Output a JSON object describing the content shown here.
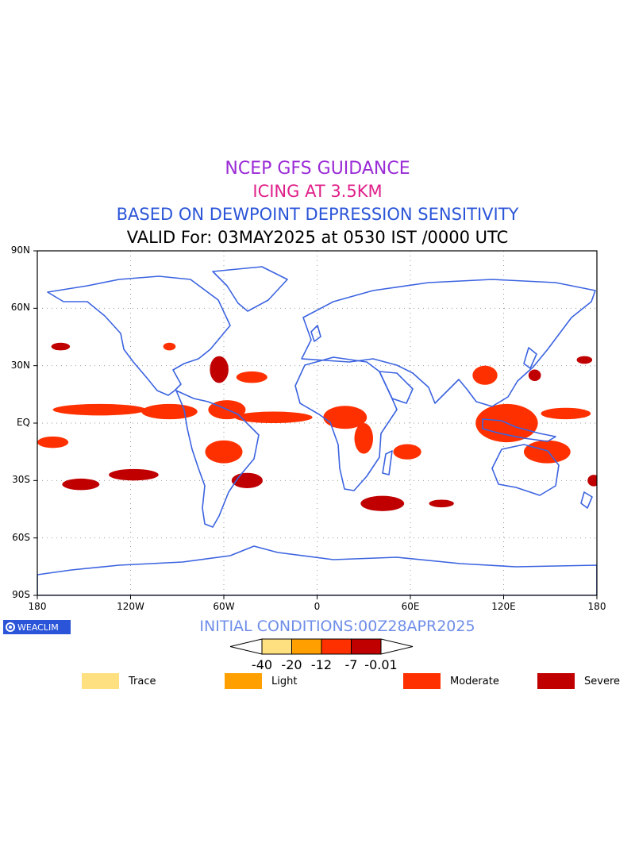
{
  "titles": {
    "line1": "NCEP GFS GUIDANCE",
    "line2": "ICING AT 3.5KM",
    "line3": "BASED ON DEWPOINT DEPRESSION SENSITIVITY",
    "line4": "VALID For: 03MAY2025 at 0530 IST /0000 UTC"
  },
  "colors": {
    "title1": "#9a2bd6",
    "title2": "#e0208a",
    "title3": "#2b55d8",
    "land_outline": "#3b63e0",
    "grid": "#9a9a9a",
    "trace": "#ffe080",
    "light": "#ffa000",
    "moderate": "#ff3000",
    "severe": "#c00000"
  },
  "axes": {
    "lat_labels": [
      "90N",
      "60N",
      "30N",
      "EQ",
      "30S",
      "60S",
      "90S"
    ],
    "lon_labels": [
      "180",
      "120W",
      "60W",
      "0",
      "60E",
      "120E",
      "180"
    ],
    "lat_ticks": [
      90,
      60,
      30,
      0,
      -30,
      -60,
      -90
    ],
    "lon_ticks": [
      -180,
      -120,
      -60,
      0,
      60,
      120,
      180
    ]
  },
  "branding": "WEACLIM",
  "initial_conditions": "INITIAL CONDITIONS:00Z28APR2025",
  "colorbar": {
    "tick_labels": [
      "-40",
      "-20",
      "-12",
      "-7",
      "-0.01"
    ],
    "segments": [
      "trace",
      "light",
      "moderate",
      "severe"
    ]
  },
  "legend": [
    {
      "label": "Trace",
      "color_key": "trace"
    },
    {
      "label": "Light",
      "color_key": "light"
    },
    {
      "label": "Moderate",
      "color_key": "moderate"
    },
    {
      "label": "Severe",
      "color_key": "severe"
    }
  ],
  "icing_regions": [
    {
      "level": "moderate",
      "lon": -140,
      "lat": 7,
      "rlon": 30,
      "rlat": 3
    },
    {
      "level": "moderate",
      "lon": -95,
      "lat": 6,
      "rlon": 18,
      "rlat": 4
    },
    {
      "level": "moderate",
      "lon": -58,
      "lat": 7,
      "rlon": 12,
      "rlat": 5
    },
    {
      "level": "moderate",
      "lon": -28,
      "lat": 3,
      "rlon": 25,
      "rlat": 3
    },
    {
      "level": "moderate",
      "lon": 18,
      "lat": 3,
      "rlon": 14,
      "rlat": 6
    },
    {
      "level": "moderate",
      "lon": 30,
      "lat": -8,
      "rlon": 6,
      "rlat": 8
    },
    {
      "level": "moderate",
      "lon": 58,
      "lat": -15,
      "rlon": 9,
      "rlat": 4
    },
    {
      "level": "moderate",
      "lon": 122,
      "lat": 0,
      "rlon": 20,
      "rlat": 10
    },
    {
      "level": "moderate",
      "lon": 160,
      "lat": 5,
      "rlon": 16,
      "rlat": 3
    },
    {
      "level": "moderate",
      "lon": 148,
      "lat": -15,
      "rlon": 15,
      "rlat": 6
    },
    {
      "level": "moderate",
      "lon": -60,
      "lat": -15,
      "rlon": 12,
      "rlat": 6
    },
    {
      "level": "moderate",
      "lon": -42,
      "lat": 24,
      "rlon": 10,
      "rlat": 3
    },
    {
      "level": "moderate",
      "lon": -95,
      "lat": 40,
      "rlon": 4,
      "rlat": 2
    },
    {
      "level": "moderate",
      "lon": 108,
      "lat": 25,
      "rlon": 8,
      "rlat": 5
    },
    {
      "level": "moderate",
      "lon": -170,
      "lat": -10,
      "rlon": 10,
      "rlat": 3
    },
    {
      "level": "severe",
      "lon": -152,
      "lat": -32,
      "rlon": 12,
      "rlat": 3
    },
    {
      "level": "severe",
      "lon": -118,
      "lat": -27,
      "rlon": 16,
      "rlat": 3
    },
    {
      "level": "severe",
      "lon": -45,
      "lat": -30,
      "rlon": 10,
      "rlat": 4
    },
    {
      "level": "severe",
      "lon": 42,
      "lat": -42,
      "rlon": 14,
      "rlat": 4
    },
    {
      "level": "severe",
      "lon": 80,
      "lat": -42,
      "rlon": 8,
      "rlat": 2
    },
    {
      "level": "severe",
      "lon": -63,
      "lat": 28,
      "rlon": 6,
      "rlat": 7
    },
    {
      "level": "severe",
      "lon": -165,
      "lat": 40,
      "rlon": 6,
      "rlat": 2
    },
    {
      "level": "severe",
      "lon": 172,
      "lat": 33,
      "rlon": 5,
      "rlat": 2
    },
    {
      "level": "severe",
      "lon": 140,
      "lat": 25,
      "rlon": 4,
      "rlat": 3
    },
    {
      "level": "severe",
      "lon": 178,
      "lat": -30,
      "rlon": 4,
      "rlat": 3
    }
  ]
}
